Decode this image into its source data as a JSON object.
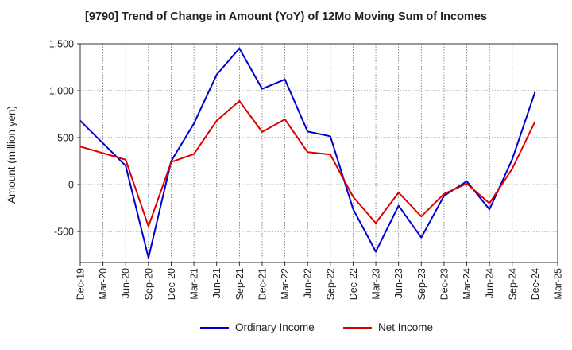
{
  "chart_data": {
    "type": "line",
    "title": "[9790]  Trend of Change in Amount (YoY) of 12Mo Moving Sum of Incomes",
    "xlabel": "",
    "ylabel": "Amount (million yen)",
    "ylim": [
      -830,
      1500
    ],
    "yticks": [
      -500,
      0,
      500,
      1000,
      1500
    ],
    "ytick_labels": [
      "-500",
      "0",
      "500",
      "1,000",
      "1,500"
    ],
    "categories": [
      "Dec-19",
      "Mar-20",
      "Jun-20",
      "Sep-20",
      "Dec-20",
      "Mar-21",
      "Jun-21",
      "Sep-21",
      "Dec-21",
      "Mar-22",
      "Jun-22",
      "Sep-22",
      "Dec-22",
      "Mar-23",
      "Jun-23",
      "Sep-23",
      "Dec-23",
      "Mar-24",
      "Jun-24",
      "Sep-24",
      "Dec-24",
      "Mar-25"
    ],
    "grid": true,
    "legend_position": "bottom-center",
    "series": [
      {
        "name": "Ordinary Income",
        "color": "#0000cc",
        "values": [
          680,
          440,
          200,
          -780,
          250,
          650,
          1170,
          1450,
          1020,
          1120,
          565,
          515,
          -260,
          -715,
          -225,
          -565,
          -120,
          35,
          -265,
          270,
          985,
          null
        ]
      },
      {
        "name": "Net Income",
        "color": "#dd0000",
        "values": [
          405,
          335,
          265,
          -445,
          240,
          325,
          680,
          890,
          560,
          695,
          345,
          320,
          -130,
          -410,
          -85,
          -340,
          -100,
          10,
          -200,
          170,
          670,
          null
        ]
      }
    ]
  }
}
